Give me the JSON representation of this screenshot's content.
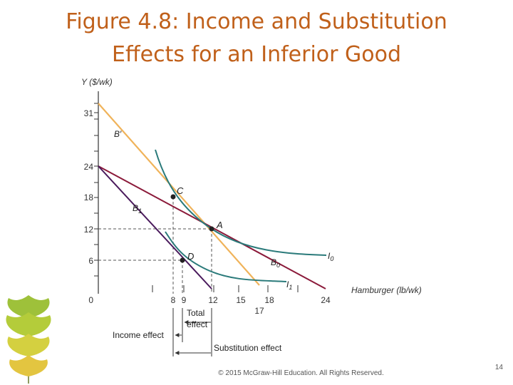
{
  "slide": {
    "title_line1": "Figure 4.8: Income and Substitution",
    "title_line2": "Effects for an Inferior Good",
    "footer": "© 2015 McGraw-Hill Education. All Rights Reserved.",
    "page_number": "14"
  },
  "colors": {
    "title": "#c0601a",
    "budget_original": "#8b1a3a",
    "budget_hypothetical": "#f0b35a",
    "budget_new": "#4a1a5c",
    "indifference": "#2a7a7a"
  },
  "axes": {
    "y_label": "Y ($/wk)",
    "x_label": "Hamburger (lb/wk)",
    "y_ticks": [
      "31",
      "24",
      "18",
      "12",
      "6",
      "0"
    ],
    "x_ticks": [
      "8",
      "9",
      "12",
      "15",
      "18",
      "24"
    ],
    "x_extra_tick": "17"
  },
  "points": {
    "A": "A",
    "C": "C",
    "D": "D"
  },
  "lines": {
    "B_prime": "B′",
    "B1": "B",
    "B1_sub": "1",
    "B0": "B",
    "B0_sub": "0",
    "I0": "I",
    "I0_sub": "0",
    "I1": "I",
    "I1_sub": "1"
  },
  "annotations": {
    "total_effect_line1": "Total",
    "total_effect_line2": "effect",
    "income_effect": "Income effect",
    "substitution_effect": "Substitution effect"
  }
}
